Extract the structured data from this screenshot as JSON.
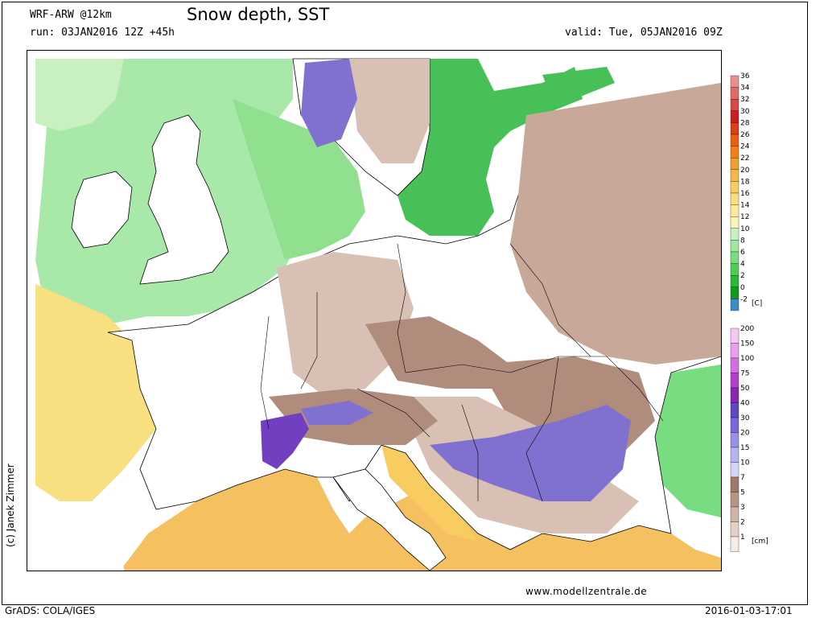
{
  "header": {
    "model": "WRF-ARW @12km",
    "title": "Snow depth, SST",
    "run": "run: 03JAN2016 12Z +45h",
    "valid": "valid: Tue, 05JAN2016 09Z"
  },
  "footer": {
    "copyright": "(c) Janek Zimmer",
    "website": "www.modellzentrale.de",
    "software": "GrADS: COLA/IGES",
    "timestamp": "2016-01-03-17:01"
  },
  "legend": {
    "sst": {
      "unit": "[C]",
      "levels": [
        "36",
        "34",
        "32",
        "30",
        "28",
        "26",
        "24",
        "22",
        "20",
        "18",
        "16",
        "14",
        "12",
        "10",
        "8",
        "6",
        "4",
        "2",
        "0",
        "-2"
      ],
      "colors": [
        "#e89090",
        "#e06868",
        "#d84848",
        "#c82020",
        "#d84018",
        "#e86010",
        "#f08018",
        "#f0a030",
        "#f4b848",
        "#f8cc60",
        "#fade80",
        "#fcea98",
        "#fcf4b8",
        "#c8f0c0",
        "#a0e8a0",
        "#78dc80",
        "#50cc58",
        "#28b838",
        "#109820",
        "#3c8cc8"
      ]
    },
    "snow": {
      "unit": "[cm]",
      "levels": [
        "200",
        "150",
        "100",
        "75",
        "50",
        "40",
        "30",
        "20",
        "15",
        "10",
        "7",
        "5",
        "3",
        "2",
        "1"
      ],
      "colors": [
        "#f4c8f4",
        "#e8a0ec",
        "#d070dc",
        "#b040c8",
        "#8828b0",
        "#6048c0",
        "#7868d8",
        "#9890e4",
        "#b8b4f0",
        "#d4d4f8",
        "#a07868",
        "#b89484",
        "#d0b4a4",
        "#e4d0c4",
        "#f4ece6",
        "#ffffff"
      ]
    }
  },
  "map": {
    "colors": {
      "land": "#ffffff",
      "atlantic_sst": "#a8e8a8",
      "north_sea_sst": "#90e090",
      "baltic_sst": "#48c058",
      "mediterranean_sst": "#f4c060",
      "biscay_sst": "#f8e080",
      "snow_light": "#d8c0b4",
      "snow_medium": "#b08c7c",
      "snow_heavy": "#8070d0",
      "snow_alps": "#7040c0"
    }
  }
}
